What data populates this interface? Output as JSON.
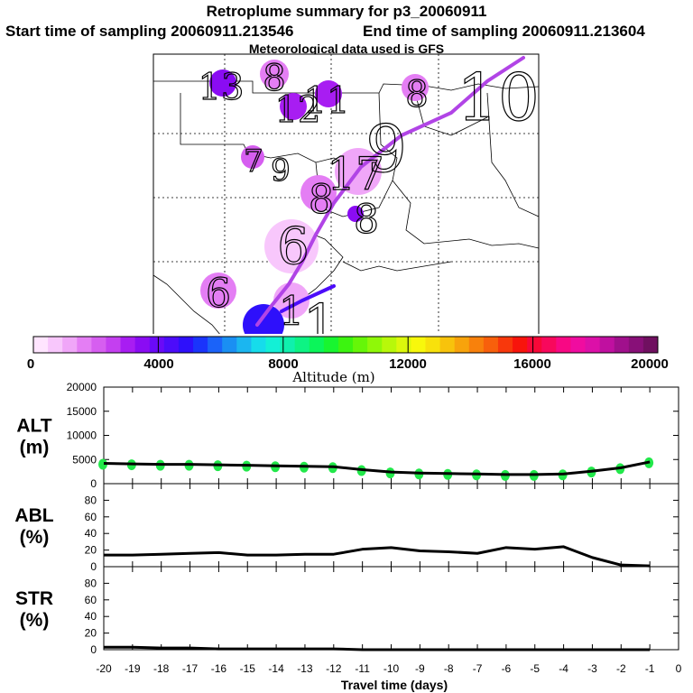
{
  "header": {
    "title": "Retroplume summary for p3_20060911",
    "start": "Start time of sampling 20060911.213546",
    "end": "End time of sampling 20060911.213604",
    "met": "Meteorological data used is GFS"
  },
  "map": {
    "labels": [
      "13",
      "8",
      "12",
      "11",
      "8",
      "10",
      "7",
      "9",
      "17",
      "9",
      "8",
      "8",
      "6",
      "6",
      "1",
      "1"
    ],
    "plume_color": "#b144e6"
  },
  "colorbar": {
    "ticks": [
      "0",
      "4000",
      "8000",
      "12000",
      "16000",
      "20000"
    ],
    "label": "Altitude (m)",
    "colors": [
      "#ffe5ff",
      "#f8c7fc",
      "#f0a6f8",
      "#e47ef4",
      "#d65ef0",
      "#c43ff0",
      "#a81df2",
      "#8a0cf3",
      "#6a0af7",
      "#4c0cfa",
      "#2e10fb",
      "#1a34fc",
      "#1b63f9",
      "#1a8ff3",
      "#1bb6f0",
      "#16dceb",
      "#13f0d6",
      "#10f0ad",
      "#0df384",
      "#0bf55a",
      "#18f530",
      "#3cf410",
      "#66f608",
      "#8ff808",
      "#b8f80a",
      "#dcf80c",
      "#f8f80c",
      "#f8e10c",
      "#f8c30c",
      "#f8a30c",
      "#f8810c",
      "#f8600c",
      "#f8380c",
      "#f8140c",
      "#f80838",
      "#f8085c",
      "#f80884",
      "#f00ca0",
      "#dc10a8",
      "#c010a0",
      "#a0108c",
      "#881078",
      "#701060"
    ]
  },
  "chart_data": {
    "type": "line",
    "x": [
      -20,
      -19,
      -18,
      -17,
      -16,
      -15,
      -14,
      -13,
      -12,
      -11,
      -10,
      -9,
      -8,
      -7,
      -6,
      -5,
      -4,
      -3,
      -2,
      -1
    ],
    "xlabel": "Travel time (days)",
    "xtick_labels": [
      "-20",
      "-19",
      "-18",
      "-17",
      "-16",
      "-15",
      "-14",
      "-13",
      "-12",
      "-11",
      "-10",
      "-9",
      "-8",
      "-7",
      "-6",
      "-5",
      "-4",
      "-3",
      "-2",
      "-1",
      "0"
    ],
    "xlim": [
      -20,
      0
    ],
    "panels": [
      {
        "name": "ALT",
        "unit": "(m)",
        "ylim": [
          0,
          20000
        ],
        "yticks": [
          "0",
          "5000",
          "10000",
          "15000",
          "20000"
        ],
        "values": [
          4200,
          4100,
          4000,
          4000,
          3900,
          3800,
          3700,
          3600,
          3500,
          2900,
          2400,
          2200,
          2100,
          2000,
          1900,
          1900,
          2000,
          2600,
          3300,
          4500
        ],
        "markers_color": "#22e84a"
      },
      {
        "name": "ABL",
        "unit": "(%)",
        "ylim": [
          0,
          100
        ],
        "yticks": [
          "0",
          "20",
          "40",
          "60",
          "80"
        ],
        "values": [
          14,
          14,
          15,
          16,
          17,
          14,
          14,
          15,
          15,
          21,
          23,
          19,
          18,
          16,
          23,
          21,
          24,
          11,
          2,
          1
        ]
      },
      {
        "name": "STR",
        "unit": "(%)",
        "ylim": [
          0,
          100
        ],
        "yticks": [
          "0",
          "20",
          "40",
          "60",
          "80"
        ],
        "values": [
          3,
          3,
          2,
          2,
          1,
          1,
          1,
          1,
          1,
          0,
          0,
          0,
          0,
          0,
          0,
          0,
          0,
          0,
          0,
          0
        ]
      }
    ]
  }
}
